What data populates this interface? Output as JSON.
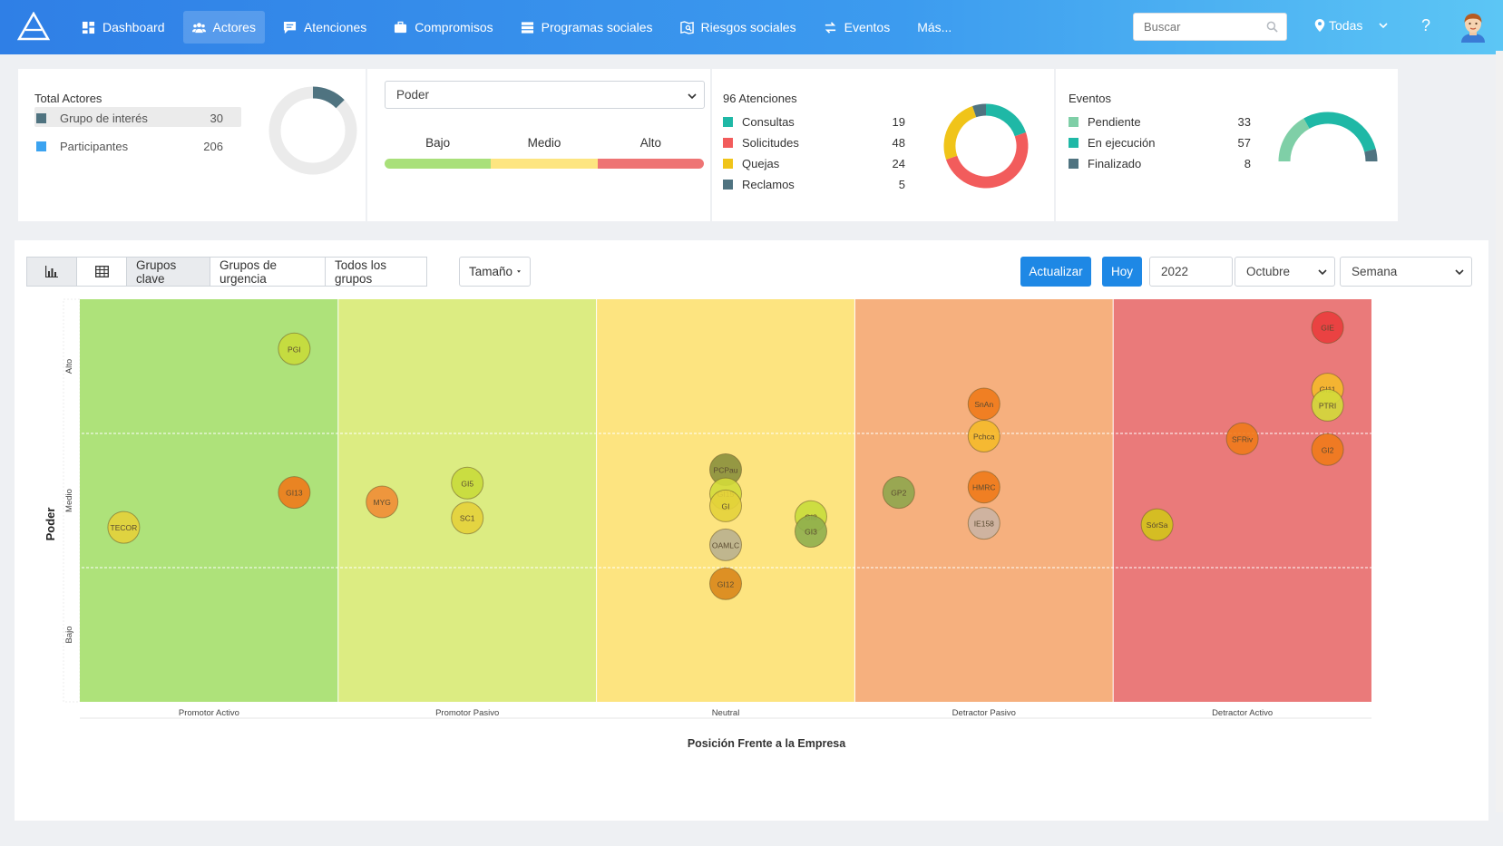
{
  "nav": {
    "items": [
      {
        "label": "Dashboard",
        "icon": "dashboard-icon"
      },
      {
        "label": "Actores",
        "icon": "users-icon",
        "active": true
      },
      {
        "label": "Atenciones",
        "icon": "comment-icon"
      },
      {
        "label": "Compromisos",
        "icon": "briefcase-icon"
      },
      {
        "label": "Programas sociales",
        "icon": "server-icon"
      },
      {
        "label": "Riesgos sociales",
        "icon": "map-search-icon"
      },
      {
        "label": "Eventos",
        "icon": "exchange-icon"
      },
      {
        "label": "Más...",
        "icon": ""
      }
    ],
    "search_placeholder": "Buscar",
    "location": "Todas",
    "help": "?"
  },
  "total_actores": {
    "title": "Total Actores",
    "items": [
      {
        "label": "Grupo de interés",
        "value": "30",
        "color": "#4f7380"
      },
      {
        "label": "Participantes",
        "value": "206",
        "color": "#3ba3f0"
      }
    ]
  },
  "poder": {
    "select": "Poder",
    "levels": [
      {
        "label": "Bajo",
        "color": "#a9e07a"
      },
      {
        "label": "Medio",
        "color": "#fde580"
      },
      {
        "label": "Alto",
        "color": "#ee7474"
      }
    ]
  },
  "atenciones": {
    "title": "96 Atenciones",
    "items": [
      {
        "label": "Consultas",
        "value": "19",
        "color": "#1fb8a6"
      },
      {
        "label": "Solicitudes",
        "value": "48",
        "color": "#f25c5c"
      },
      {
        "label": "Quejas",
        "value": "24",
        "color": "#f0c419"
      },
      {
        "label": "Reclamos",
        "value": "5",
        "color": "#4f7380"
      }
    ]
  },
  "eventos": {
    "title": "Eventos",
    "items": [
      {
        "label": "Pendiente",
        "value": "33",
        "color": "#7fcfa7"
      },
      {
        "label": "En ejecución",
        "value": "57",
        "color": "#1fb8a6"
      },
      {
        "label": "Finalizado",
        "value": "8",
        "color": "#4f7380"
      }
    ]
  },
  "toolbar": {
    "group_buttons": [
      "Grupos clave",
      "Grupos de urgencia",
      "Todos los grupos"
    ],
    "size_label": "Tamaño",
    "update_label": "Actualizar",
    "today_label": "Hoy",
    "year": "2022",
    "month": "Octubre",
    "period": "Semana"
  },
  "chart_data": {
    "type": "scatter",
    "xlabel": "Posición Frente a la Empresa",
    "ylabel": "Poder",
    "x_categories": [
      "Promotor Activo",
      "Promotor Pasivo",
      "Neutral",
      "Detractor Pasivo",
      "Detractor Activo"
    ],
    "y_categories": [
      "Bajo",
      "Medio",
      "Alto"
    ],
    "zone_colors": [
      "#aee27a",
      "#dcec82",
      "#fde480",
      "#f6b07e",
      "#ea7a7a"
    ],
    "xlim": [
      0,
      5
    ],
    "ylim": [
      0,
      3
    ],
    "points": [
      {
        "label": "PGI",
        "x": 0.83,
        "y": 2.63,
        "color": "#c8dc3a"
      },
      {
        "label": "GI13",
        "x": 0.83,
        "y": 1.56,
        "color": "#ef7a1a"
      },
      {
        "label": "TECOR",
        "x": 0.17,
        "y": 1.3,
        "color": "#e4d23a"
      },
      {
        "label": "MYG",
        "x": 1.17,
        "y": 1.49,
        "color": "#f08d35"
      },
      {
        "label": "GI5",
        "x": 1.5,
        "y": 1.63,
        "color": "#c8dc3a"
      },
      {
        "label": "SC1",
        "x": 1.5,
        "y": 1.37,
        "color": "#e4d23a"
      },
      {
        "label": "PCPau",
        "x": 2.5,
        "y": 1.73,
        "color": "#8a8f3c"
      },
      {
        "label": "GI15",
        "x": 2.5,
        "y": 1.55,
        "color": "#d3da3a"
      },
      {
        "label": "GI",
        "x": 2.5,
        "y": 1.46,
        "color": "#e4d23a"
      },
      {
        "label": "OAMLC",
        "x": 2.5,
        "y": 1.17,
        "color": "#b9b08f"
      },
      {
        "label": "GI12",
        "x": 2.5,
        "y": 0.88,
        "color": "#d9861a"
      },
      {
        "label": "GI8",
        "x": 2.83,
        "y": 1.38,
        "color": "#c8dc3a"
      },
      {
        "label": "GI3",
        "x": 2.83,
        "y": 1.27,
        "color": "#8fae4e"
      },
      {
        "label": "GP2",
        "x": 3.17,
        "y": 1.56,
        "color": "#8fa64e"
      },
      {
        "label": "SnAn",
        "x": 3.5,
        "y": 2.22,
        "color": "#ef7a1a"
      },
      {
        "label": "Pchca",
        "x": 3.5,
        "y": 1.98,
        "color": "#f5ba2a"
      },
      {
        "label": "HMRC",
        "x": 3.5,
        "y": 1.6,
        "color": "#ef7a1a"
      },
      {
        "label": "IE158",
        "x": 3.5,
        "y": 1.33,
        "color": "#cbb4a4"
      },
      {
        "label": "GIE",
        "x": 4.83,
        "y": 2.79,
        "color": "#ea3c3c"
      },
      {
        "label": "GI11",
        "x": 4.83,
        "y": 2.33,
        "color": "#f5ba2a"
      },
      {
        "label": "PTRI",
        "x": 4.83,
        "y": 2.21,
        "color": "#d3da3a"
      },
      {
        "label": "SFRiv",
        "x": 4.5,
        "y": 1.96,
        "color": "#ef7a1a"
      },
      {
        "label": "GI2",
        "x": 4.83,
        "y": 1.88,
        "color": "#ef7a1a"
      },
      {
        "label": "SórSa",
        "x": 4.17,
        "y": 1.32,
        "color": "#d3c41a"
      }
    ]
  }
}
